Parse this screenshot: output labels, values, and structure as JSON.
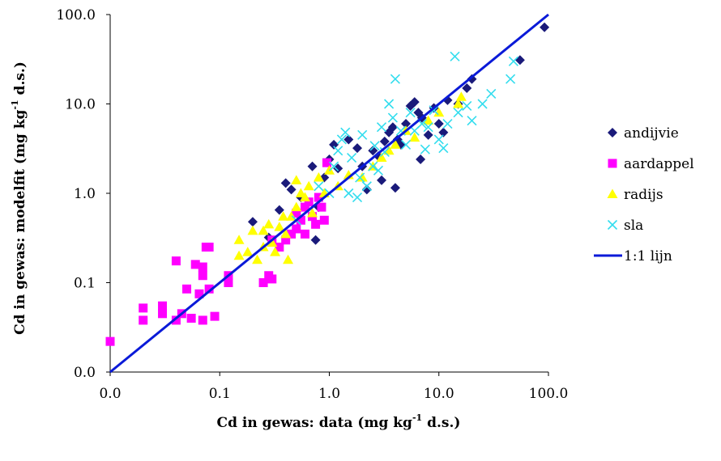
{
  "chart_data": {
    "type": "scatter",
    "x_scale": "log",
    "y_scale": "log",
    "xlim": [
      0.01,
      100
    ],
    "ylim": [
      0.01,
      100
    ],
    "x_ticks": [
      0.01,
      0.1,
      1,
      10,
      100
    ],
    "y_ticks": [
      0.01,
      0.1,
      1,
      10,
      100
    ],
    "x_tick_labels": [
      "0.0",
      "0.1",
      "1.0",
      "10.0",
      "100.0"
    ],
    "y_tick_labels": [
      "0.0",
      "0.1",
      "1.0",
      "10.0",
      "100.0"
    ],
    "xlabel": {
      "main": "Cd in gewas: data (mg kg",
      "sup": "-1",
      "tail": " d.s.)"
    },
    "ylabel": {
      "main": "Cd in gewas: modelfit (mg kg",
      "sup": "-1",
      "tail": " d.s.)"
    },
    "grid": false,
    "legend_position": "right",
    "series": [
      {
        "name": "andijvie",
        "marker": "diamond",
        "color": "#1a1a7a",
        "points": [
          [
            0.2,
            0.48
          ],
          [
            0.28,
            0.32
          ],
          [
            0.35,
            0.65
          ],
          [
            0.4,
            1.3
          ],
          [
            0.45,
            1.1
          ],
          [
            0.55,
            0.9
          ],
          [
            0.7,
            2.0
          ],
          [
            0.75,
            0.3
          ],
          [
            0.8,
            0.7
          ],
          [
            0.9,
            1.5
          ],
          [
            1.0,
            2.4
          ],
          [
            1.1,
            3.5
          ],
          [
            1.2,
            1.9
          ],
          [
            1.5,
            4.0
          ],
          [
            1.8,
            3.2
          ],
          [
            2.0,
            2.0
          ],
          [
            2.2,
            1.1
          ],
          [
            2.5,
            3.0
          ],
          [
            2.8,
            2.6
          ],
          [
            3.0,
            1.4
          ],
          [
            3.5,
            4.8
          ],
          [
            3.8,
            5.5
          ],
          [
            4.0,
            1.15
          ],
          [
            4.5,
            3.5
          ],
          [
            5.0,
            6.0
          ],
          [
            5.5,
            9.5
          ],
          [
            6.0,
            10.5
          ],
          [
            6.5,
            8.0
          ],
          [
            7.0,
            7.0
          ],
          [
            8.0,
            4.5
          ],
          [
            9.0,
            9.0
          ],
          [
            10.0,
            6.0
          ],
          [
            11.0,
            4.8
          ],
          [
            12.0,
            11.0
          ],
          [
            15.0,
            10.0
          ],
          [
            18.0,
            15.0
          ],
          [
            20.0,
            19.0
          ],
          [
            6.8,
            2.4
          ],
          [
            4.2,
            4.0
          ],
          [
            3.2,
            3.8
          ],
          [
            55.0,
            31.0
          ],
          [
            92.0,
            72.0
          ]
        ]
      },
      {
        "name": "aardappel",
        "marker": "square",
        "color": "#ff00ff",
        "points": [
          [
            0.01,
            0.022
          ],
          [
            0.02,
            0.052
          ],
          [
            0.02,
            0.038
          ],
          [
            0.03,
            0.045
          ],
          [
            0.03,
            0.055
          ],
          [
            0.04,
            0.175
          ],
          [
            0.04,
            0.038
          ],
          [
            0.045,
            0.045
          ],
          [
            0.05,
            0.085
          ],
          [
            0.055,
            0.04
          ],
          [
            0.06,
            0.16
          ],
          [
            0.065,
            0.075
          ],
          [
            0.07,
            0.15
          ],
          [
            0.07,
            0.12
          ],
          [
            0.07,
            0.038
          ],
          [
            0.075,
            0.25
          ],
          [
            0.08,
            0.25
          ],
          [
            0.08,
            0.085
          ],
          [
            0.09,
            0.042
          ],
          [
            0.12,
            0.12
          ],
          [
            0.12,
            0.1
          ],
          [
            0.25,
            0.1
          ],
          [
            0.28,
            0.12
          ],
          [
            0.3,
            0.11
          ],
          [
            0.3,
            0.3
          ],
          [
            0.35,
            0.25
          ],
          [
            0.4,
            0.3
          ],
          [
            0.45,
            0.35
          ],
          [
            0.5,
            0.4
          ],
          [
            0.5,
            0.6
          ],
          [
            0.55,
            0.5
          ],
          [
            0.6,
            0.7
          ],
          [
            0.6,
            0.35
          ],
          [
            0.65,
            0.8
          ],
          [
            0.7,
            0.55
          ],
          [
            0.75,
            0.45
          ],
          [
            0.8,
            0.9
          ],
          [
            0.85,
            0.7
          ],
          [
            0.9,
            0.5
          ],
          [
            0.95,
            2.2
          ]
        ]
      },
      {
        "name": "radijs",
        "marker": "triangle",
        "color": "#ffff00",
        "points": [
          [
            0.15,
            0.2
          ],
          [
            0.15,
            0.3
          ],
          [
            0.18,
            0.22
          ],
          [
            0.2,
            0.38
          ],
          [
            0.22,
            0.18
          ],
          [
            0.25,
            0.25
          ],
          [
            0.25,
            0.38
          ],
          [
            0.28,
            0.45
          ],
          [
            0.3,
            0.28
          ],
          [
            0.32,
            0.22
          ],
          [
            0.35,
            0.42
          ],
          [
            0.38,
            0.55
          ],
          [
            0.4,
            0.35
          ],
          [
            0.42,
            0.18
          ],
          [
            0.45,
            0.55
          ],
          [
            0.5,
            0.7
          ],
          [
            0.5,
            1.4
          ],
          [
            0.55,
            1.0
          ],
          [
            0.6,
            0.9
          ],
          [
            0.65,
            1.2
          ],
          [
            0.7,
            0.6
          ],
          [
            0.8,
            1.5
          ],
          [
            0.9,
            1.0
          ],
          [
            1.0,
            1.8
          ],
          [
            1.2,
            1.2
          ],
          [
            1.5,
            1.6
          ],
          [
            2.0,
            1.5
          ],
          [
            2.5,
            2.0
          ],
          [
            3.0,
            2.5
          ],
          [
            3.5,
            3.0
          ],
          [
            4.0,
            3.5
          ],
          [
            5.0,
            5.0
          ],
          [
            6.0,
            4.2
          ],
          [
            8.0,
            6.5
          ],
          [
            10.0,
            8.0
          ],
          [
            15.0,
            10.0
          ],
          [
            16.0,
            12.0
          ]
        ]
      },
      {
        "name": "sla",
        "marker": "cross",
        "color": "#33ddee",
        "points": [
          [
            0.5,
            0.5
          ],
          [
            0.8,
            1.2
          ],
          [
            1.0,
            1.0
          ],
          [
            1.1,
            2.0
          ],
          [
            1.2,
            3.0
          ],
          [
            1.3,
            4.0
          ],
          [
            1.4,
            4.8
          ],
          [
            1.5,
            1.0
          ],
          [
            1.6,
            2.5
          ],
          [
            1.8,
            0.9
          ],
          [
            2.0,
            4.5
          ],
          [
            2.2,
            1.2
          ],
          [
            2.5,
            2.0
          ],
          [
            2.8,
            1.8
          ],
          [
            3.0,
            5.5
          ],
          [
            3.5,
            10.0
          ],
          [
            3.8,
            7.0
          ],
          [
            4.0,
            19.0
          ],
          [
            4.5,
            5.0
          ],
          [
            5.0,
            3.5
          ],
          [
            5.5,
            8.0
          ],
          [
            6.0,
            5.0
          ],
          [
            7.0,
            6.0
          ],
          [
            8.0,
            5.5
          ],
          [
            9.0,
            8.5
          ],
          [
            10.0,
            4.0
          ],
          [
            11.0,
            3.2
          ],
          [
            12.0,
            6.0
          ],
          [
            14.0,
            34.0
          ],
          [
            15.0,
            8.0
          ],
          [
            18.0,
            9.5
          ],
          [
            20.0,
            6.5
          ],
          [
            25.0,
            10.0
          ],
          [
            30.0,
            13.0
          ],
          [
            45.0,
            19.0
          ],
          [
            48.0,
            30.0
          ],
          [
            2.6,
            3.4
          ],
          [
            1.9,
            1.5
          ],
          [
            3.2,
            2.9
          ],
          [
            7.5,
            3.1
          ]
        ]
      },
      {
        "name": "1:1 lijn",
        "marker": "line",
        "color": "#0a1ad8",
        "points": [
          [
            0.01,
            0.01
          ],
          [
            100,
            100
          ]
        ]
      }
    ]
  }
}
